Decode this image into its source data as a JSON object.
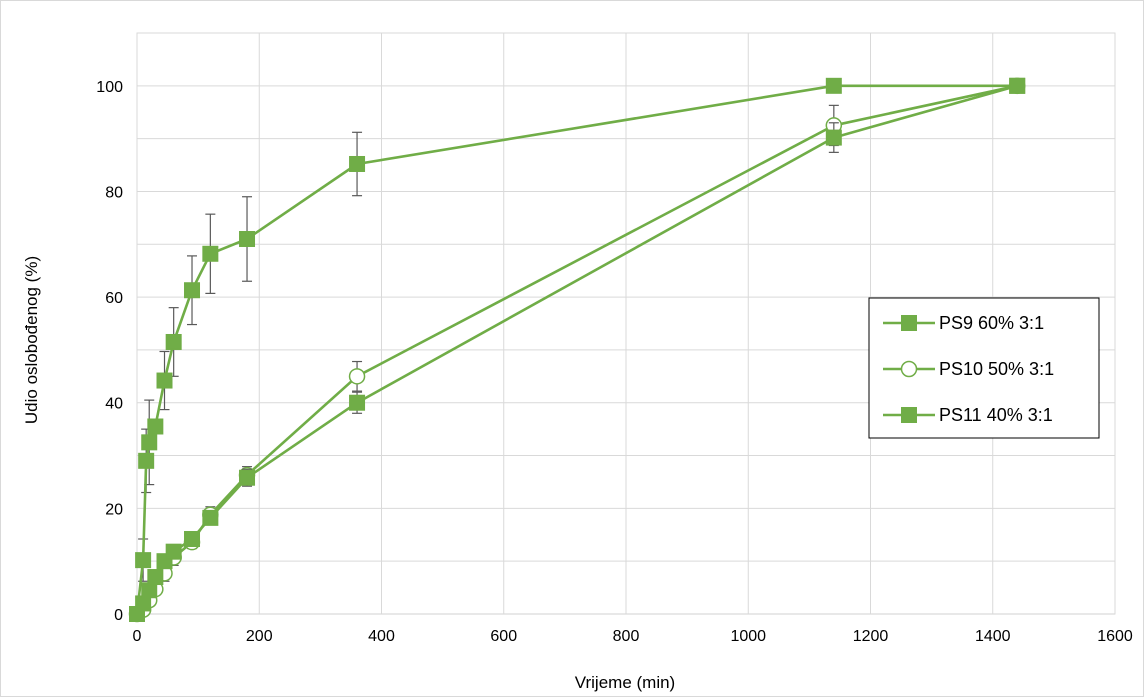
{
  "chart_data": {
    "type": "line",
    "title": "",
    "xlabel": "Vrijeme (min)",
    "ylabel": "Udio oslobođenog (%)",
    "xlim": [
      0,
      1600
    ],
    "ylim": [
      0,
      110
    ],
    "xticks": [
      0,
      200,
      400,
      600,
      800,
      1000,
      1200,
      1400,
      1600
    ],
    "yticks": [
      0,
      20,
      40,
      60,
      80,
      100
    ],
    "grid": true,
    "legend_position": "right",
    "colors": {
      "line": "#70ad47",
      "marker_fill": "#70ad47",
      "open_marker_fill": "#ffffff",
      "error_bar": "#595959",
      "grid": "#d9d9d9"
    },
    "series": [
      {
        "name": "PS9 60% 3:1",
        "marker": "square",
        "x": [
          0,
          10,
          15,
          20,
          30,
          45,
          60,
          90,
          120,
          180,
          360,
          1140,
          1440
        ],
        "y": [
          0,
          10.2,
          29,
          32.5,
          35.5,
          44.2,
          51.5,
          61.3,
          68.2,
          71,
          85.2,
          100,
          100
        ],
        "error": [
          0,
          4,
          6,
          8,
          0,
          5.5,
          6.5,
          6.5,
          7.5,
          8,
          6,
          0,
          0
        ]
      },
      {
        "name": "PS10 50% 3:1",
        "marker": "circle-open",
        "x": [
          0,
          10,
          20,
          30,
          45,
          60,
          90,
          120,
          180,
          360,
          1140,
          1440
        ],
        "y": [
          0,
          0.8,
          2.6,
          4.7,
          7.7,
          10.7,
          13.6,
          18.8,
          26.3,
          45,
          92.5,
          100
        ],
        "error": [
          0,
          0.5,
          0.8,
          1,
          1.5,
          1.5,
          1.2,
          1.5,
          1.6,
          2.8,
          3.8,
          0
        ]
      },
      {
        "name": "PS11 40% 3:1",
        "marker": "square",
        "x": [
          0,
          10,
          20,
          30,
          45,
          60,
          90,
          120,
          180,
          360,
          1140,
          1440
        ],
        "y": [
          0,
          2,
          4.5,
          7,
          10,
          11.8,
          14.2,
          18.2,
          25.8,
          40,
          90.2,
          100
        ],
        "error": [
          0,
          0.6,
          0.8,
          1,
          1.2,
          1.2,
          1,
          1.2,
          1.6,
          2,
          2.8,
          0
        ]
      }
    ]
  }
}
